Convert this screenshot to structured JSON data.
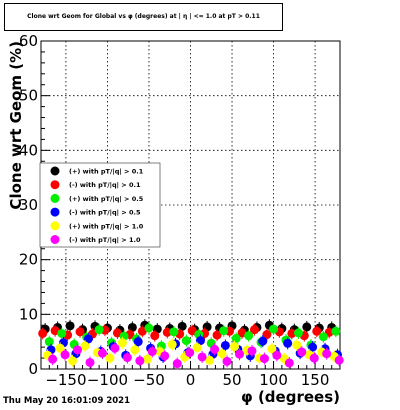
{
  "header": {
    "title": "Clone wrt Geom for Global vs φ (degrees) at | η | <= 1.0 at pT > 0.11"
  },
  "footer": {
    "timestamp": "Thu May 20 16:01:09 2021"
  },
  "chart_data": {
    "type": "scatter",
    "title": "Clone wrt Geom for Global vs φ (degrees) at | η | <= 1.0 at pT > 0.11",
    "xlabel": "φ (degrees)",
    "ylabel": "Clone wrt Geom (%)",
    "xlim": [
      -180,
      180
    ],
    "ylim": [
      0,
      60
    ],
    "xticks": [
      -150,
      -100,
      -50,
      0,
      50,
      100,
      150
    ],
    "xtick_labels": [
      "−150",
      "−100",
      "−50",
      "0",
      "50",
      "100",
      "150"
    ],
    "yticks": [
      0,
      10,
      20,
      30,
      40,
      50,
      60
    ],
    "grid": true,
    "legend_position": "middle-left",
    "series": [
      {
        "name": "(+) with pT/|q| > 0.1",
        "color": "#000000",
        "x": [
          -175,
          -160,
          -145,
          -130,
          -115,
          -100,
          -85,
          -70,
          -55,
          -40,
          -25,
          -10,
          5,
          20,
          35,
          50,
          65,
          80,
          95,
          110,
          125,
          140,
          155,
          170
        ],
        "y": [
          7.3,
          7.6,
          7.9,
          7.2,
          7.8,
          7.5,
          7.1,
          7.6,
          8.0,
          7.3,
          7.4,
          7.8,
          7.2,
          7.7,
          7.5,
          7.9,
          7.1,
          7.6,
          8.0,
          7.4,
          7.2,
          7.7,
          7.5,
          7.6
        ]
      },
      {
        "name": "(-) with pT/|q| > 0.1",
        "color": "#ff0000",
        "x": [
          -178,
          -163,
          -148,
          -133,
          -118,
          -103,
          -88,
          -73,
          -58,
          -43,
          -28,
          -13,
          2,
          17,
          32,
          47,
          62,
          77,
          92,
          107,
          122,
          137,
          152,
          167
        ],
        "y": [
          6.5,
          7.0,
          6.2,
          6.8,
          6.4,
          7.1,
          6.6,
          6.3,
          6.9,
          6.1,
          6.7,
          6.4,
          7.0,
          6.5,
          6.2,
          6.9,
          6.6,
          7.2,
          6.3,
          6.8,
          6.5,
          6.1,
          6.9,
          6.7
        ]
      },
      {
        "name": "(+) with pT/|q| > 0.5",
        "color": "#00ee00",
        "x": [
          -170,
          -155,
          -140,
          -125,
          -110,
          -95,
          -80,
          -65,
          -50,
          -35,
          -20,
          -5,
          10,
          25,
          40,
          55,
          70,
          85,
          100,
          115,
          130,
          145,
          160,
          175
        ],
        "y": [
          5.0,
          6.5,
          4.5,
          5.8,
          7.2,
          4.8,
          6.0,
          5.5,
          7.5,
          4.2,
          6.8,
          5.2,
          6.3,
          4.7,
          7.0,
          5.6,
          6.1,
          4.9,
          7.3,
          5.3,
          6.6,
          4.4,
          5.9,
          6.9
        ]
      },
      {
        "name": "(-) with pT/|q| > 0.5",
        "color": "#0000ff",
        "x": [
          -168,
          -153,
          -138,
          -123,
          -108,
          -93,
          -78,
          -63,
          -48,
          -33,
          -18,
          -3,
          12,
          27,
          42,
          57,
          72,
          87,
          102,
          117,
          132,
          147,
          162,
          177
        ],
        "y": [
          3.5,
          4.8,
          2.8,
          5.5,
          3.2,
          4.1,
          2.5,
          5.0,
          3.8,
          2.2,
          4.6,
          3.0,
          5.2,
          2.7,
          4.3,
          3.6,
          2.4,
          5.1,
          3.3,
          4.7,
          2.9,
          4.0,
          3.7,
          2.6
        ]
      },
      {
        "name": "(+) with pT/|q| > 1.0",
        "color": "#ffff00",
        "x": [
          -172,
          -157,
          -142,
          -127,
          -112,
          -97,
          -82,
          -67,
          -52,
          -37,
          -22,
          -7,
          8,
          23,
          38,
          53,
          68,
          83,
          98,
          113,
          128,
          143,
          158,
          173
        ],
        "y": [
          2.5,
          3.8,
          1.5,
          4.2,
          3.0,
          2.0,
          4.8,
          3.5,
          1.8,
          3.2,
          4.5,
          2.2,
          3.9,
          1.6,
          2.8,
          4.1,
          3.4,
          2.0,
          3.7,
          1.9,
          4.4,
          2.6,
          3.1,
          2.3
        ]
      },
      {
        "name": "(-) with pT/|q| > 1.0",
        "color": "#ff00ff",
        "x": [
          -166,
          -151,
          -136,
          -121,
          -106,
          -91,
          -76,
          -61,
          -46,
          -31,
          -16,
          -1,
          14,
          29,
          44,
          59,
          74,
          89,
          104,
          119,
          134,
          149,
          164,
          179
        ],
        "y": [
          1.8,
          2.6,
          3.5,
          1.2,
          2.9,
          3.8,
          2.1,
          1.5,
          3.2,
          2.4,
          1.0,
          3.0,
          2.2,
          3.6,
          1.4,
          2.7,
          3.3,
          1.9,
          2.5,
          1.1,
          3.1,
          2.0,
          2.8,
          1.6
        ]
      }
    ]
  }
}
